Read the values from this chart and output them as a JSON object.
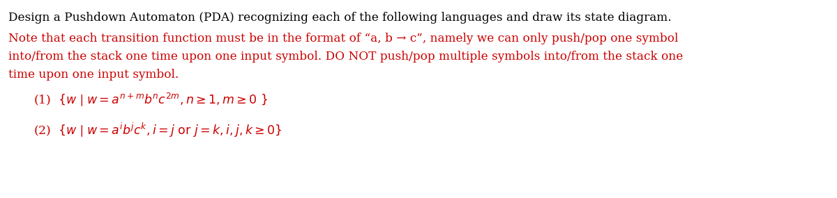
{
  "title_line": "Design a Pushdown Automaton (PDA) recognizing each of the following languages and draw its state diagram.",
  "title_color": "#000000",
  "note_line1": "Note that each transition function must be in the format of “a, b → c”, namely we can only push/pop one symbol",
  "note_line2": "into/from the stack one time upon one input symbol. DO NOT push/pop multiple symbols into/from the stack one",
  "note_line3": "time upon one input symbol.",
  "note_color": "#cc0000",
  "item_color": "#cc0000",
  "bg_color": "#ffffff",
  "fig_width": 12.0,
  "fig_height": 2.85,
  "dpi": 100,
  "font_size_text": 12.2,
  "font_size_math": 12.5
}
